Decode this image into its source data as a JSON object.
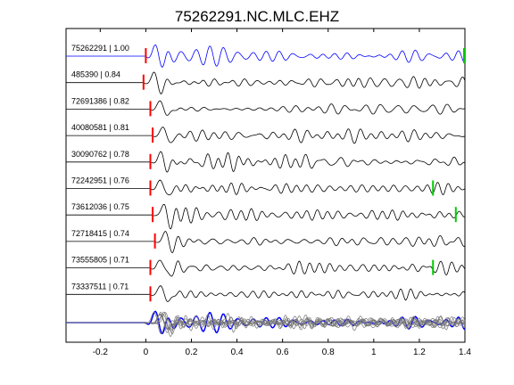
{
  "chart_data": {
    "type": "line",
    "title": "75262291.NC.MLC.EHZ",
    "xlabel": "",
    "ylabel": "",
    "xlim": [
      -0.35,
      1.4
    ],
    "xticks": [
      -0.2,
      0,
      0.2,
      0.4,
      0.6,
      0.8,
      1,
      1.2,
      1.4
    ],
    "xtick_labels": [
      "-0.2",
      "0",
      "0.2",
      "0.4",
      "0.6",
      "0.8",
      "1",
      "1.2",
      "1.4"
    ],
    "grid": false,
    "colors": {
      "reference_trace": "#0000ff",
      "trace": "#000000",
      "stack": "#777777",
      "p_pick": "#ff0000",
      "s_pick": "#00cc00"
    },
    "traces": [
      {
        "label": "75262291 | 1.00",
        "event_id": "75262291",
        "correlation": 1.0,
        "p_pick_time": 0.0,
        "s_pick_time": 1.4,
        "reference": true
      },
      {
        "label": "485390 | 0.84",
        "event_id": "485390",
        "correlation": 0.84,
        "p_pick_time": -0.01,
        "s_pick_time": null
      },
      {
        "label": "72691386 | 0.82",
        "event_id": "72691386",
        "correlation": 0.82,
        "p_pick_time": 0.02,
        "s_pick_time": null
      },
      {
        "label": "40080581 | 0.81",
        "event_id": "40080581",
        "correlation": 0.81,
        "p_pick_time": 0.03,
        "s_pick_time": null
      },
      {
        "label": "30090762 | 0.78",
        "event_id": "30090762",
        "correlation": 0.78,
        "p_pick_time": 0.02,
        "s_pick_time": null
      },
      {
        "label": "72242951 | 0.76",
        "event_id": "72242951",
        "correlation": 0.76,
        "p_pick_time": 0.02,
        "s_pick_time": 1.26
      },
      {
        "label": "73612036 | 0.75",
        "event_id": "73612036",
        "correlation": 0.75,
        "p_pick_time": 0.03,
        "s_pick_time": 1.36
      },
      {
        "label": "72718415 | 0.74",
        "event_id": "72718415",
        "correlation": 0.74,
        "p_pick_time": 0.04,
        "s_pick_time": null
      },
      {
        "label": "73555805 | 0.71",
        "event_id": "73555805",
        "correlation": 0.71,
        "p_pick_time": 0.02,
        "s_pick_time": 1.26
      },
      {
        "label": "73337511 | 0.71",
        "event_id": "73337511",
        "correlation": 0.71,
        "p_pick_time": 0.02,
        "s_pick_time": null
      }
    ],
    "stack": {
      "label": "",
      "overlay_of": "all traces",
      "reference_color": "#0000ff"
    }
  }
}
